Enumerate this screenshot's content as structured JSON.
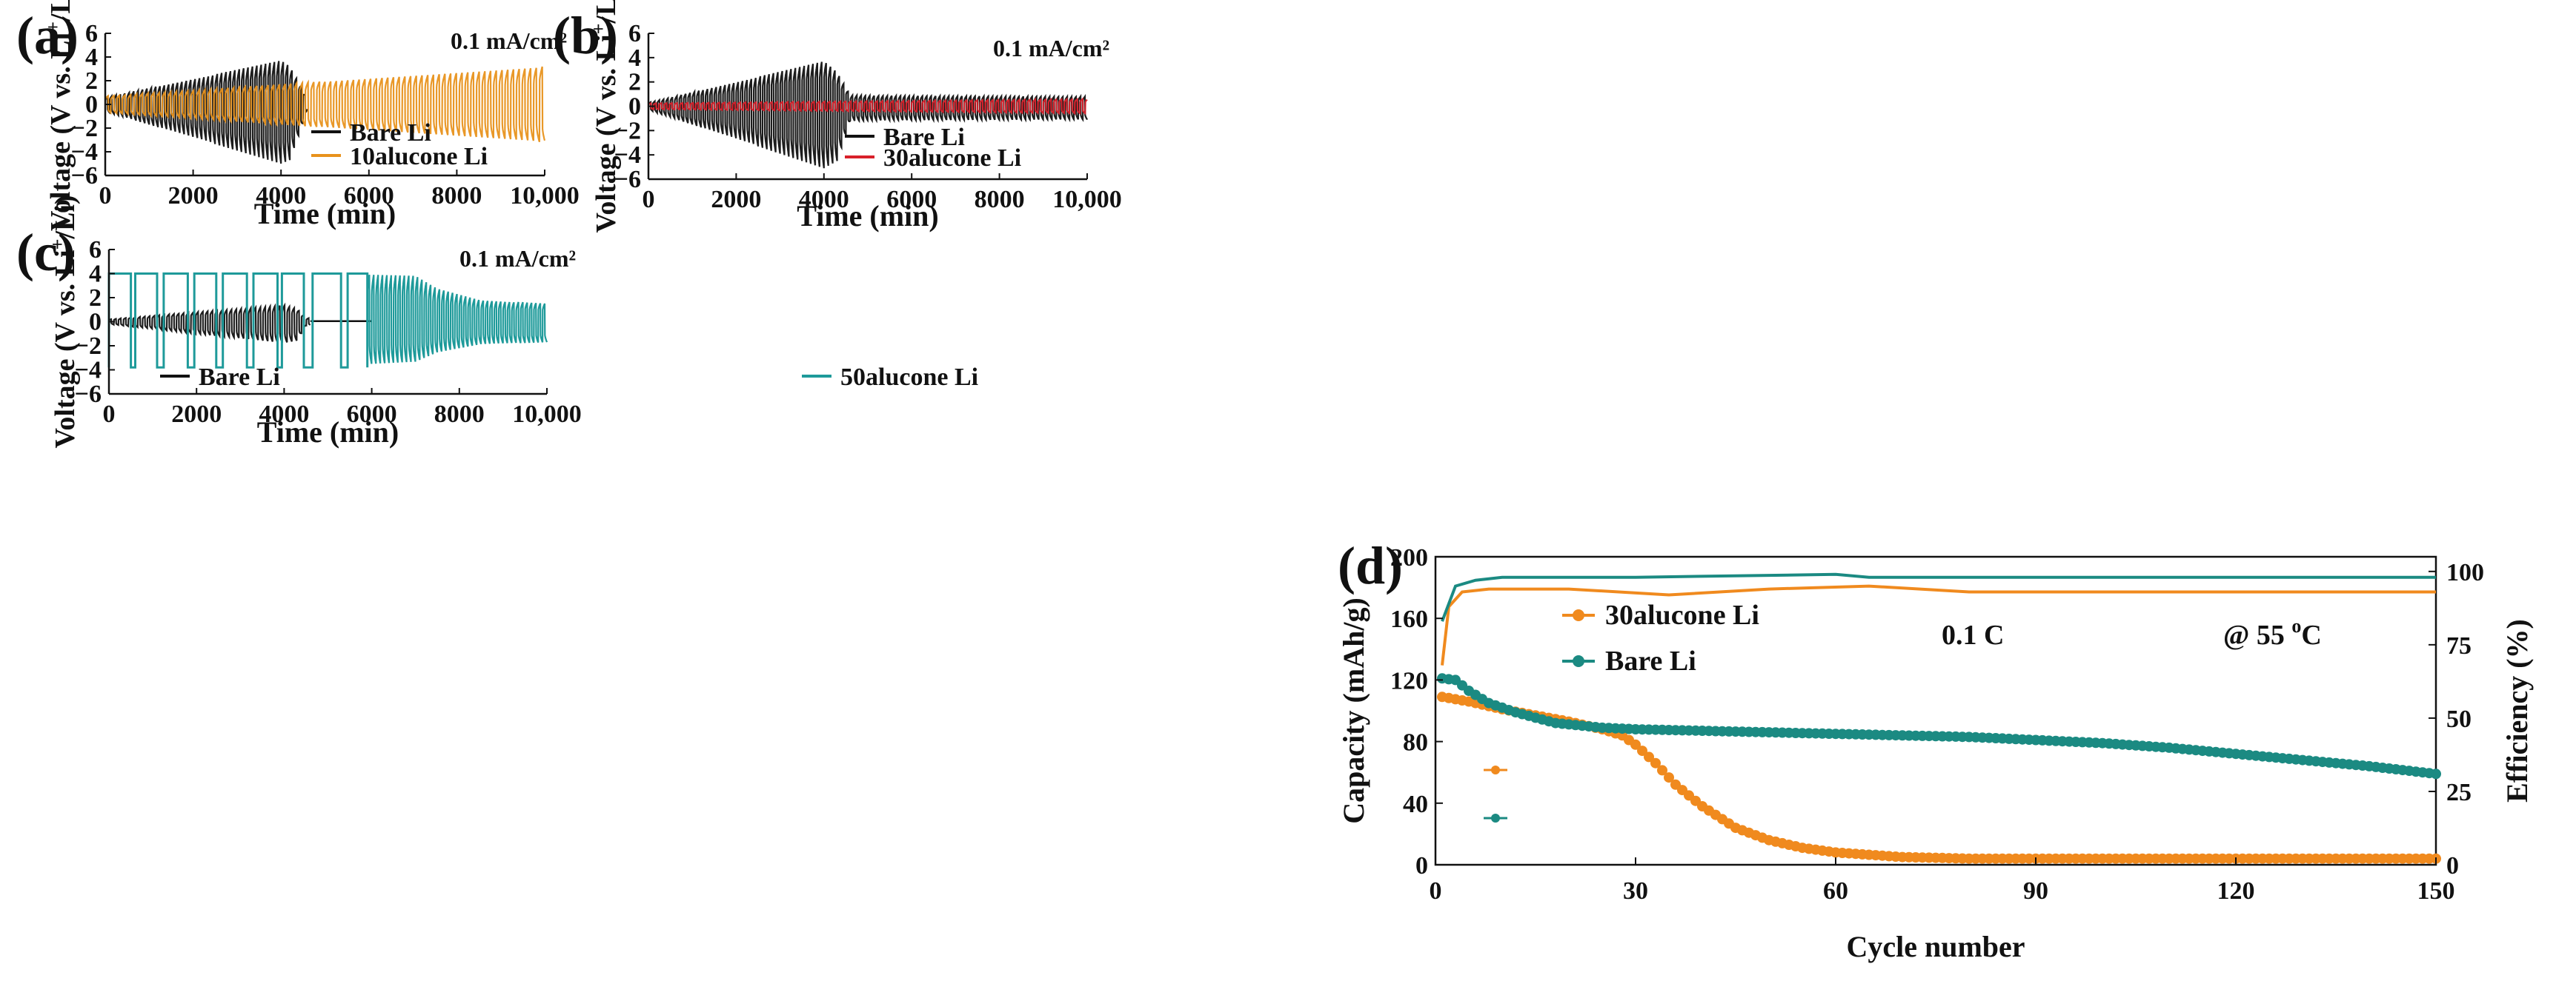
{
  "colors": {
    "bare": "#111111",
    "alucone10": "#E8921C",
    "alucone30": "#D8202A",
    "alucone50": "#1E9A9A",
    "bare_d": "#1B8A82",
    "alucone30_d": "#F08A1E"
  },
  "chart_data": [
    {
      "panel": "(a)",
      "type": "line",
      "condition": "0.1 mA/cm²",
      "xlabel": "Time (min)",
      "ylabel_main": "Voltage (V vs. Li",
      "ylabel_sup": "+",
      "ylabel_tail": "/Li)",
      "xlim": [
        0,
        10000
      ],
      "ylim": [
        -6,
        6
      ],
      "xticks": [
        0,
        2000,
        4000,
        6000,
        8000,
        10000
      ],
      "xtick_labels": [
        "0",
        "2000",
        "4000",
        "6000",
        "8000",
        "10,000"
      ],
      "yticks": [
        6,
        4,
        2,
        0,
        -2,
        -4,
        -6
      ],
      "ytick_labels": [
        "6",
        "4",
        "2",
        "0",
        "−2",
        "−4",
        "−6"
      ],
      "series": [
        {
          "name": "Bare Li",
          "color_key": "bare",
          "t_end": 4600,
          "period": 100,
          "upper_env": [
            [
              0,
              0.6
            ],
            [
              4000,
              3.7
            ],
            [
              4200,
              3.2
            ],
            [
              4500,
              1.2
            ],
            [
              4600,
              0.3
            ]
          ],
          "lower_env": [
            [
              0,
              -0.6
            ],
            [
              4000,
              -5.0
            ],
            [
              4200,
              -4.7
            ],
            [
              4500,
              -1.6
            ],
            [
              4600,
              -0.4
            ]
          ]
        },
        {
          "name": "10alucone Li",
          "color_key": "alucone10",
          "t_end": 10000,
          "period": 130,
          "upper_env": [
            [
              0,
              0.7
            ],
            [
              10000,
              3.2
            ]
          ],
          "lower_env": [
            [
              0,
              -0.7
            ],
            [
              10000,
              -3.2
            ]
          ]
        }
      ]
    },
    {
      "panel": "(b)",
      "type": "line",
      "condition": "0.1 mA/cm²",
      "xlabel": "Time (min)",
      "ylabel_main": "Voltage (V vs. Li",
      "ylabel_sup": "+",
      "ylabel_tail": "/Li)",
      "xlim": [
        0,
        10000
      ],
      "ylim": [
        -6,
        6
      ],
      "xticks": [
        0,
        2000,
        4000,
        6000,
        8000,
        10000
      ],
      "xtick_labels": [
        "0",
        "2000",
        "4000",
        "6000",
        "8000",
        "10,000"
      ],
      "yticks": [
        6,
        4,
        2,
        0,
        -2,
        -4,
        -6
      ],
      "ytick_labels": [
        "6",
        "4",
        "2",
        "0",
        "−2",
        "−4",
        "−6"
      ],
      "series": [
        {
          "name": "Bare Li",
          "color_key": "bare",
          "t_end": 10000,
          "period": 100,
          "upper_env": [
            [
              0,
              0.3
            ],
            [
              4000,
              3.7
            ],
            [
              4300,
              2.8
            ],
            [
              4600,
              0.9
            ],
            [
              10000,
              0.8
            ]
          ],
          "lower_env": [
            [
              0,
              -0.3
            ],
            [
              4000,
              -5.1
            ],
            [
              4300,
              -4.5
            ],
            [
              4600,
              -1.2
            ],
            [
              10000,
              -1.1
            ]
          ]
        },
        {
          "name": "30alucone Li",
          "color_key": "alucone30",
          "t_end": 10000,
          "period": 120,
          "upper_env": [
            [
              0,
              0.25
            ],
            [
              10000,
              0.6
            ]
          ],
          "lower_env": [
            [
              0,
              -0.25
            ],
            [
              10000,
              -0.6
            ]
          ]
        }
      ]
    },
    {
      "panel": "(c)",
      "type": "line",
      "condition": "0.1 mA/cm²",
      "xlabel": "Time (min)",
      "ylabel_main": "Voltage (V vs. Li",
      "ylabel_sup": "+",
      "ylabel_tail": "/Li)",
      "xlim": [
        0,
        10000
      ],
      "ylim": [
        -6,
        6
      ],
      "xticks": [
        0,
        2000,
        4000,
        6000,
        8000,
        10000
      ],
      "xtick_labels": [
        "0",
        "2000",
        "4000",
        "6000",
        "8000",
        "10,000"
      ],
      "yticks": [
        6,
        4,
        2,
        0,
        -2,
        -4,
        -6
      ],
      "ytick_labels": [
        "6",
        "4",
        "2",
        "0",
        "−2",
        "−4",
        "−6"
      ],
      "series": [
        {
          "name": "Bare Li",
          "color_key": "bare",
          "t_end": 4600,
          "period": 110,
          "upper_env": [
            [
              0,
              0.2
            ],
            [
              4000,
              1.4
            ],
            [
              4300,
              1.1
            ],
            [
              4500,
              0.3
            ]
          ],
          "lower_env": [
            [
              0,
              -0.2
            ],
            [
              4000,
              -1.8
            ],
            [
              4300,
              -1.6
            ],
            [
              4500,
              -0.3
            ]
          ],
          "tail_flat": [
            4600,
            6000,
            0.05
          ]
        },
        {
          "name": "50alucone Li",
          "color_key": "alucone50",
          "t_end": 10000,
          "square": {
            "t_end": 5900,
            "high": 4.0,
            "low": -3.8,
            "edges": [
              0,
              500,
              600,
              1100,
              1250,
              1800,
              1950,
              2450,
              2600,
              3150,
              3300,
              3850,
              3950,
              4450,
              4650,
              5300,
              5450,
              5900
            ]
          },
          "osc": {
            "t_start": 5900,
            "t_end": 10000,
            "period": 100,
            "upper_env": [
              [
                5900,
                4.0
              ],
              [
                7000,
                3.9
              ],
              [
                7500,
                2.8
              ],
              [
                8500,
                1.8
              ],
              [
                10000,
                1.5
              ]
            ],
            "lower_env": [
              [
                5900,
                -3.6
              ],
              [
                7000,
                -3.4
              ],
              [
                7500,
                -2.6
              ],
              [
                8500,
                -1.9
              ],
              [
                10000,
                -1.7
              ]
            ]
          }
        }
      ]
    },
    {
      "panel": "(d)",
      "type": "scatter",
      "condition": "0.1 C",
      "temperature_main": "@ 55 ",
      "temperature_sup": "o",
      "temperature_unit": "C",
      "xlabel": "Cycle number",
      "ylabel_left": "Capacity (mAh/g)",
      "ylabel_right": "Efficiency (%)",
      "xlim": [
        0,
        150
      ],
      "ylim_left": [
        0,
        200
      ],
      "ylim_right": [
        0,
        105
      ],
      "xticks": [
        0,
        30,
        60,
        90,
        120,
        150
      ],
      "yticks_left": [
        0,
        40,
        80,
        120,
        160,
        200
      ],
      "yticks_right": [
        0,
        25,
        50,
        75,
        100
      ],
      "series": [
        {
          "name": "30alucone Li",
          "color_key": "alucone30_d",
          "axis": "left",
          "points": [
            [
              1,
              109
            ],
            [
              5,
              106
            ],
            [
              10,
              101
            ],
            [
              15,
              97
            ],
            [
              20,
              93
            ],
            [
              25,
              88
            ],
            [
              28,
              84
            ],
            [
              30,
              78
            ],
            [
              33,
              66
            ],
            [
              36,
              52
            ],
            [
              40,
              38
            ],
            [
              45,
              24
            ],
            [
              50,
              16
            ],
            [
              55,
              11
            ],
            [
              60,
              8
            ],
            [
              70,
              5
            ],
            [
              80,
              4
            ],
            [
              100,
              4
            ],
            [
              120,
              4
            ],
            [
              150,
              4
            ]
          ]
        },
        {
          "name": "Bare Li",
          "color_key": "bare_d",
          "axis": "left",
          "points": [
            [
              1,
              121
            ],
            [
              3,
              120
            ],
            [
              5,
              113
            ],
            [
              8,
              105
            ],
            [
              12,
              99
            ],
            [
              18,
              92
            ],
            [
              25,
              89
            ],
            [
              30,
              88
            ],
            [
              40,
              87
            ],
            [
              50,
              86
            ],
            [
              60,
              85
            ],
            [
              70,
              84
            ],
            [
              80,
              83
            ],
            [
              90,
              81
            ],
            [
              100,
              79
            ],
            [
              110,
              76
            ],
            [
              120,
              72
            ],
            [
              130,
              68
            ],
            [
              140,
              64
            ],
            [
              150,
              59
            ]
          ]
        },
        {
          "name": "30alucone Li efficiency",
          "color_key": "alucone30_d",
          "axis": "right",
          "points": [
            [
              1,
              68
            ],
            [
              2,
              88
            ],
            [
              4,
              93
            ],
            [
              8,
              94
            ],
            [
              20,
              94
            ],
            [
              35,
              92
            ],
            [
              50,
              94
            ],
            [
              65,
              95
            ],
            [
              80,
              93
            ],
            [
              100,
              93
            ],
            [
              120,
              93
            ],
            [
              150,
              93
            ]
          ]
        },
        {
          "name": "Bare Li efficiency",
          "color_key": "bare_d",
          "axis": "right",
          "points": [
            [
              1,
              83
            ],
            [
              3,
              95
            ],
            [
              6,
              97
            ],
            [
              10,
              98
            ],
            [
              30,
              98
            ],
            [
              60,
              99
            ],
            [
              65,
              98
            ],
            [
              100,
              98
            ],
            [
              150,
              98
            ]
          ]
        }
      ]
    }
  ]
}
